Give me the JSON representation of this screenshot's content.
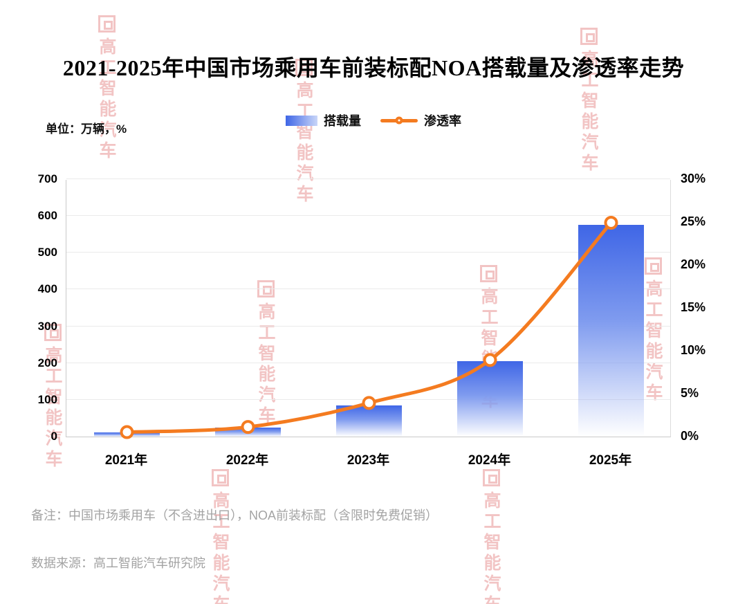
{
  "title": "2021-2025年中国市场乘用车前装标配NOA搭载量及渗透率走势",
  "unit_label": "单位：万辆，%",
  "legend": {
    "bar_label": "搭载量",
    "line_label": "渗透率"
  },
  "note": "备注：中国市场乘用车（不含进出口），NOA前装标配（含限时免费促销）",
  "source": "数据来源：高工智能汽车研究院",
  "watermark": {
    "text": "高工智能汽车"
  },
  "colors": {
    "bar_top": "#3f66e6",
    "bar_bottom": "#ffffff",
    "line": "#f47b20",
    "watermark": "#de6c6c"
  },
  "chart_data": {
    "type": "combo-bar-line",
    "title": "2021-2025年中国市场乘用车前装标配NOA搭载量及渗透率走势",
    "categories": [
      "2021年",
      "2022年",
      "2023年",
      "2024年",
      "2025年"
    ],
    "series": [
      {
        "name": "搭载量",
        "kind": "bar",
        "axis": "left",
        "unit": "万辆",
        "values": [
          12,
          24,
          85,
          205,
          575
        ]
      },
      {
        "name": "渗透率",
        "kind": "line",
        "axis": "right",
        "unit": "%",
        "values": [
          0.6,
          1.2,
          4,
          9,
          25
        ]
      }
    ],
    "left_axis": {
      "min": 0,
      "max": 700,
      "step": 100,
      "ticks": [
        0,
        100,
        200,
        300,
        400,
        500,
        600,
        700
      ]
    },
    "right_axis": {
      "min": 0,
      "max": 30,
      "step": 5,
      "ticks": [
        "0%",
        "5%",
        "10%",
        "15%",
        "20%",
        "25%",
        "30%"
      ]
    },
    "grid": true,
    "legend_position": "top"
  }
}
